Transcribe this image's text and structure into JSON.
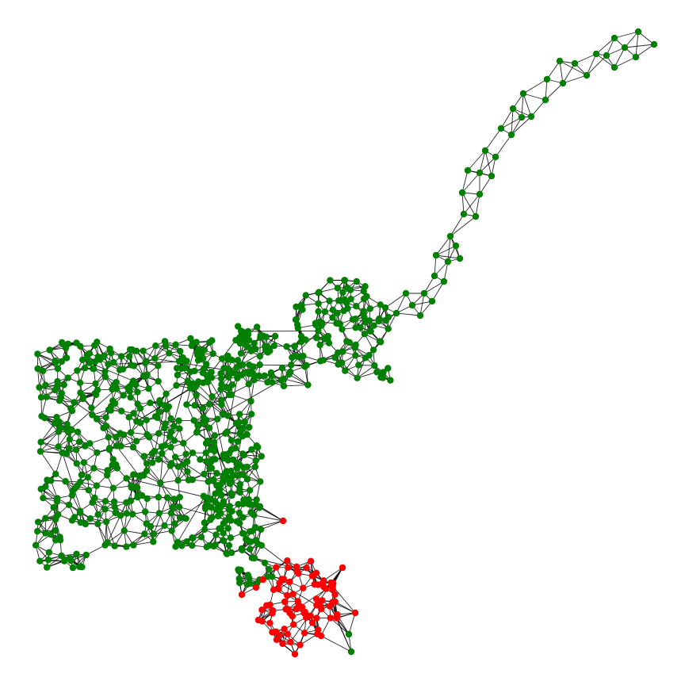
{
  "graph": {
    "type": "network-graph",
    "layout": "force-directed",
    "labels_shown": false,
    "edge_color": "#000000",
    "background_color": "#ffffff",
    "groups": [
      {
        "name": "",
        "color": "#008000",
        "approx_node_count": 760
      },
      {
        "name": "",
        "color": "#ff0000",
        "approx_node_count": 90
      }
    ]
  }
}
